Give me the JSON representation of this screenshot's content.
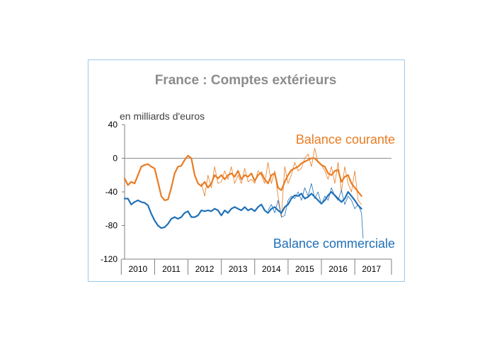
{
  "chart_data": {
    "type": "line",
    "title": "France : Comptes extérieurs",
    "unit_label": "en milliards d'euros",
    "xlabel": "",
    "ylabel": "",
    "ylim": [
      -120,
      40
    ],
    "yticks": [
      40,
      0,
      -40,
      -80,
      -120
    ],
    "xlim": [
      2009.6,
      2017.6
    ],
    "year_labels": [
      "2010",
      "2011",
      "2012",
      "2013",
      "2014",
      "2015",
      "2016",
      "2017"
    ],
    "grid": false,
    "zero_line": true,
    "series": [
      {
        "name": "Balance courante",
        "color": "#e97c23",
        "style": "smoothed",
        "x": [
          2009.6,
          2009.7,
          2009.8,
          2009.9,
          2010.0,
          2010.1,
          2010.2,
          2010.3,
          2010.4,
          2010.5,
          2010.6,
          2010.7,
          2010.8,
          2010.9,
          2011.0,
          2011.1,
          2011.2,
          2011.3,
          2011.4,
          2011.5,
          2011.6,
          2011.7,
          2011.8,
          2011.9,
          2012.0,
          2012.1,
          2012.2,
          2012.3,
          2012.4,
          2012.5,
          2012.6,
          2012.7,
          2012.8,
          2012.9,
          2013.0,
          2013.1,
          2013.2,
          2013.3,
          2013.4,
          2013.5,
          2013.6,
          2013.7,
          2013.8,
          2013.9,
          2014.0,
          2014.1,
          2014.2,
          2014.3,
          2014.4,
          2014.5,
          2014.6,
          2014.7,
          2014.8,
          2014.9,
          2015.0,
          2015.1,
          2015.2,
          2015.3,
          2015.4,
          2015.5,
          2015.6,
          2015.7,
          2015.8,
          2015.9,
          2016.0,
          2016.1,
          2016.2,
          2016.3,
          2016.4,
          2016.5,
          2016.6,
          2016.7
        ],
        "y": [
          -24,
          -32,
          -28,
          -30,
          -20,
          -10,
          -8,
          -7,
          -10,
          -12,
          -28,
          -45,
          -50,
          -49,
          -35,
          -18,
          -10,
          -9,
          -2,
          3,
          0,
          -20,
          -30,
          -33,
          -28,
          -35,
          -30,
          -20,
          -24,
          -20,
          -25,
          -20,
          -18,
          -22,
          -15,
          -25,
          -20,
          -22,
          -18,
          -27,
          -20,
          -17,
          -25,
          -30,
          -20,
          -18,
          -35,
          -38,
          -28,
          -20,
          -14,
          -12,
          -10,
          -6,
          -4,
          -2,
          0,
          0,
          -4,
          -8,
          -10,
          -18,
          -20,
          -15,
          -14,
          -28,
          -22,
          -20,
          -30,
          -35,
          -40,
          -45
        ]
      },
      {
        "name": "Balance commerciale",
        "color": "#1f70b8",
        "style": "smoothed",
        "x": [
          2009.6,
          2009.7,
          2009.8,
          2009.9,
          2010.0,
          2010.1,
          2010.2,
          2010.3,
          2010.4,
          2010.5,
          2010.6,
          2010.7,
          2010.8,
          2010.9,
          2011.0,
          2011.1,
          2011.2,
          2011.3,
          2011.4,
          2011.5,
          2011.6,
          2011.7,
          2011.8,
          2011.9,
          2012.0,
          2012.1,
          2012.2,
          2012.3,
          2012.4,
          2012.5,
          2012.6,
          2012.7,
          2012.8,
          2012.9,
          2013.0,
          2013.1,
          2013.2,
          2013.3,
          2013.4,
          2013.5,
          2013.6,
          2013.7,
          2013.8,
          2013.9,
          2014.0,
          2014.1,
          2014.2,
          2014.3,
          2014.4,
          2014.5,
          2014.6,
          2014.7,
          2014.8,
          2014.9,
          2015.0,
          2015.1,
          2015.2,
          2015.3,
          2015.4,
          2015.5,
          2015.6,
          2015.7,
          2015.8,
          2015.9,
          2016.0,
          2016.1,
          2016.2,
          2016.3,
          2016.4,
          2016.5,
          2016.6,
          2016.7
        ],
        "y": [
          -48,
          -48,
          -55,
          -52,
          -50,
          -52,
          -53,
          -56,
          -66,
          -74,
          -80,
          -83,
          -82,
          -78,
          -72,
          -70,
          -72,
          -70,
          -65,
          -63,
          -70,
          -70,
          -68,
          -62,
          -63,
          -62,
          -63,
          -60,
          -62,
          -68,
          -62,
          -65,
          -60,
          -58,
          -60,
          -62,
          -58,
          -62,
          -60,
          -63,
          -58,
          -55,
          -62,
          -65,
          -60,
          -58,
          -62,
          -65,
          -58,
          -55,
          -48,
          -44,
          -45,
          -42,
          -48,
          -46,
          -42,
          -46,
          -50,
          -54,
          -50,
          -44,
          -40,
          -44,
          -48,
          -52,
          -48,
          -40,
          -45,
          -50,
          -56,
          -60
        ]
      },
      {
        "name": "",
        "color": "#e97c23",
        "style": "raw",
        "x": [
          2011.9,
          2012.0,
          2012.1,
          2012.2,
          2012.3,
          2012.4,
          2012.5,
          2012.6,
          2012.7,
          2012.8,
          2012.9,
          2013.0,
          2013.1,
          2013.2,
          2013.3,
          2013.4,
          2013.5,
          2013.6,
          2013.7,
          2013.8,
          2013.9,
          2014.0,
          2014.1,
          2014.2,
          2014.3,
          2014.4,
          2014.5,
          2014.6,
          2014.7,
          2014.8,
          2014.9,
          2015.0,
          2015.1,
          2015.2,
          2015.3,
          2015.4,
          2015.5,
          2015.6,
          2015.7,
          2015.8,
          2015.9,
          2016.0,
          2016.1,
          2016.2,
          2016.3,
          2016.4,
          2016.5,
          2016.6,
          2016.7
        ],
        "y": [
          -30,
          -45,
          -20,
          -35,
          -10,
          -30,
          -28,
          -15,
          -25,
          -10,
          -30,
          -20,
          -30,
          -12,
          -28,
          -25,
          -30,
          -15,
          -20,
          -30,
          -5,
          -30,
          -15,
          -45,
          -70,
          -10,
          -30,
          -20,
          -5,
          -15,
          -12,
          0,
          5,
          -10,
          12,
          -5,
          -8,
          -15,
          -25,
          -10,
          -30,
          -5,
          -40,
          -10,
          -30,
          -40,
          -15,
          -50,
          -55
        ]
      },
      {
        "name": "",
        "color": "#1f70b8",
        "style": "raw",
        "x": [
          2013.9,
          2014.0,
          2014.1,
          2014.2,
          2014.3,
          2014.4,
          2014.5,
          2014.6,
          2014.7,
          2014.8,
          2014.9,
          2015.0,
          2015.1,
          2015.2,
          2015.3,
          2015.4,
          2015.5,
          2015.6,
          2015.7,
          2015.8,
          2015.9,
          2016.0,
          2016.1,
          2016.2,
          2016.3,
          2016.4,
          2016.5,
          2016.6,
          2016.7,
          2016.75
        ],
        "y": [
          -62,
          -55,
          -65,
          -50,
          -70,
          -68,
          -50,
          -45,
          -48,
          -40,
          -50,
          -35,
          -45,
          -30,
          -48,
          -40,
          -55,
          -45,
          -50,
          -35,
          -45,
          -50,
          -38,
          -55,
          -45,
          -50,
          -60,
          -55,
          -65,
          -95
        ]
      }
    ]
  }
}
